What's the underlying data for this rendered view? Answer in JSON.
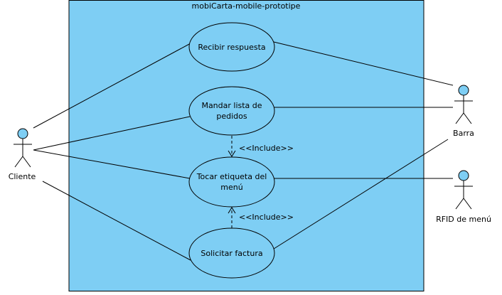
{
  "system": {
    "title": "mobiCarta-mobile-prototipe",
    "fill": "#7ecef4"
  },
  "actors": {
    "cliente": "Cliente",
    "barra": "Barra",
    "rfid": "RFID de menú"
  },
  "use_cases": {
    "recibir": [
      "Recibir respuesta"
    ],
    "mandar": [
      "Mandar lista de",
      "pedidos"
    ],
    "tocar": [
      "Tocar etiqueta del",
      "menú"
    ],
    "solicitar": [
      "Solicitar factura"
    ]
  },
  "relations": {
    "include_1": "<<Include>>",
    "include_2": "<<Include>>"
  },
  "colors": {
    "actor_head": "#7ecef4",
    "line": "#000000"
  }
}
